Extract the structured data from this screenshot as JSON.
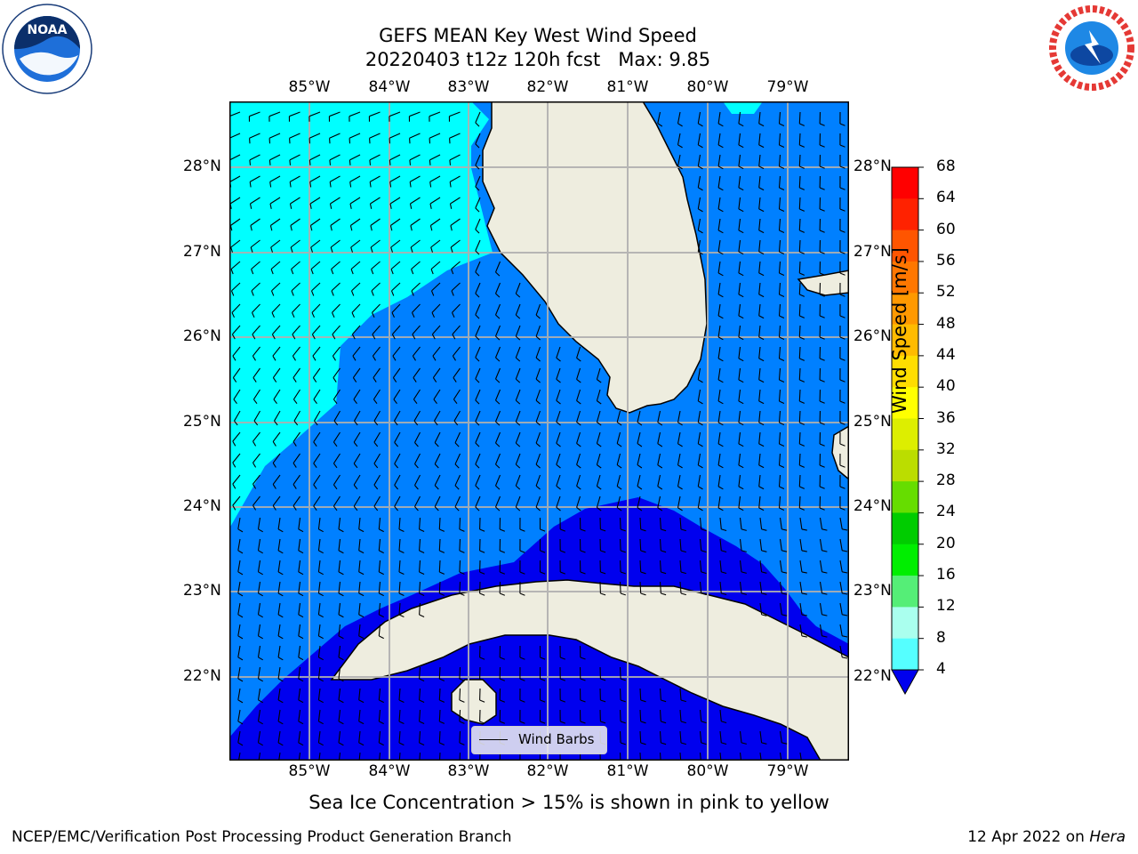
{
  "title": {
    "line1": "GEFS MEAN Key West Wind Speed",
    "line2_date": "20220403 t12z 120h fcst",
    "line2_max": "Max: 9.85"
  },
  "axes": {
    "lon_labels": [
      "85°W",
      "84°W",
      "83°W",
      "82°W",
      "81°W",
      "80°W",
      "79°W"
    ],
    "lat_labels": [
      "28°N",
      "27°N",
      "26°N",
      "25°N",
      "24°N",
      "23°N",
      "22°N"
    ]
  },
  "colorbar": {
    "title": "Wind Speed [m/s]",
    "levels": [
      "68",
      "64",
      "60",
      "56",
      "52",
      "48",
      "44",
      "40",
      "36",
      "32",
      "28",
      "24",
      "20",
      "16",
      "12",
      "8",
      "4"
    ],
    "colors": [
      "#ff0000",
      "#ff2200",
      "#ff5500",
      "#ff7700",
      "#ff9900",
      "#ffbb00",
      "#ffdd00",
      "#ffff00",
      "#ddee00",
      "#bbdd00",
      "#66dd00",
      "#00cc00",
      "#00ee00",
      "#55ee77",
      "#aaffee",
      "#55ffff",
      "#00ffff",
      "#0088ff",
      "#0000ee"
    ]
  },
  "legend": {
    "label": "Wind Barbs"
  },
  "caption": "Sea Ice Concentration > 15% is shown in pink to yellow",
  "footer": {
    "left": "NCEP/EMC/Verification Post Processing Product Generation Branch",
    "right_prefix": "12 Apr 2022 on ",
    "right_machine": "Hera"
  },
  "logos": {
    "left": "noaa-logo",
    "right": "national-weather-service-logo"
  }
}
